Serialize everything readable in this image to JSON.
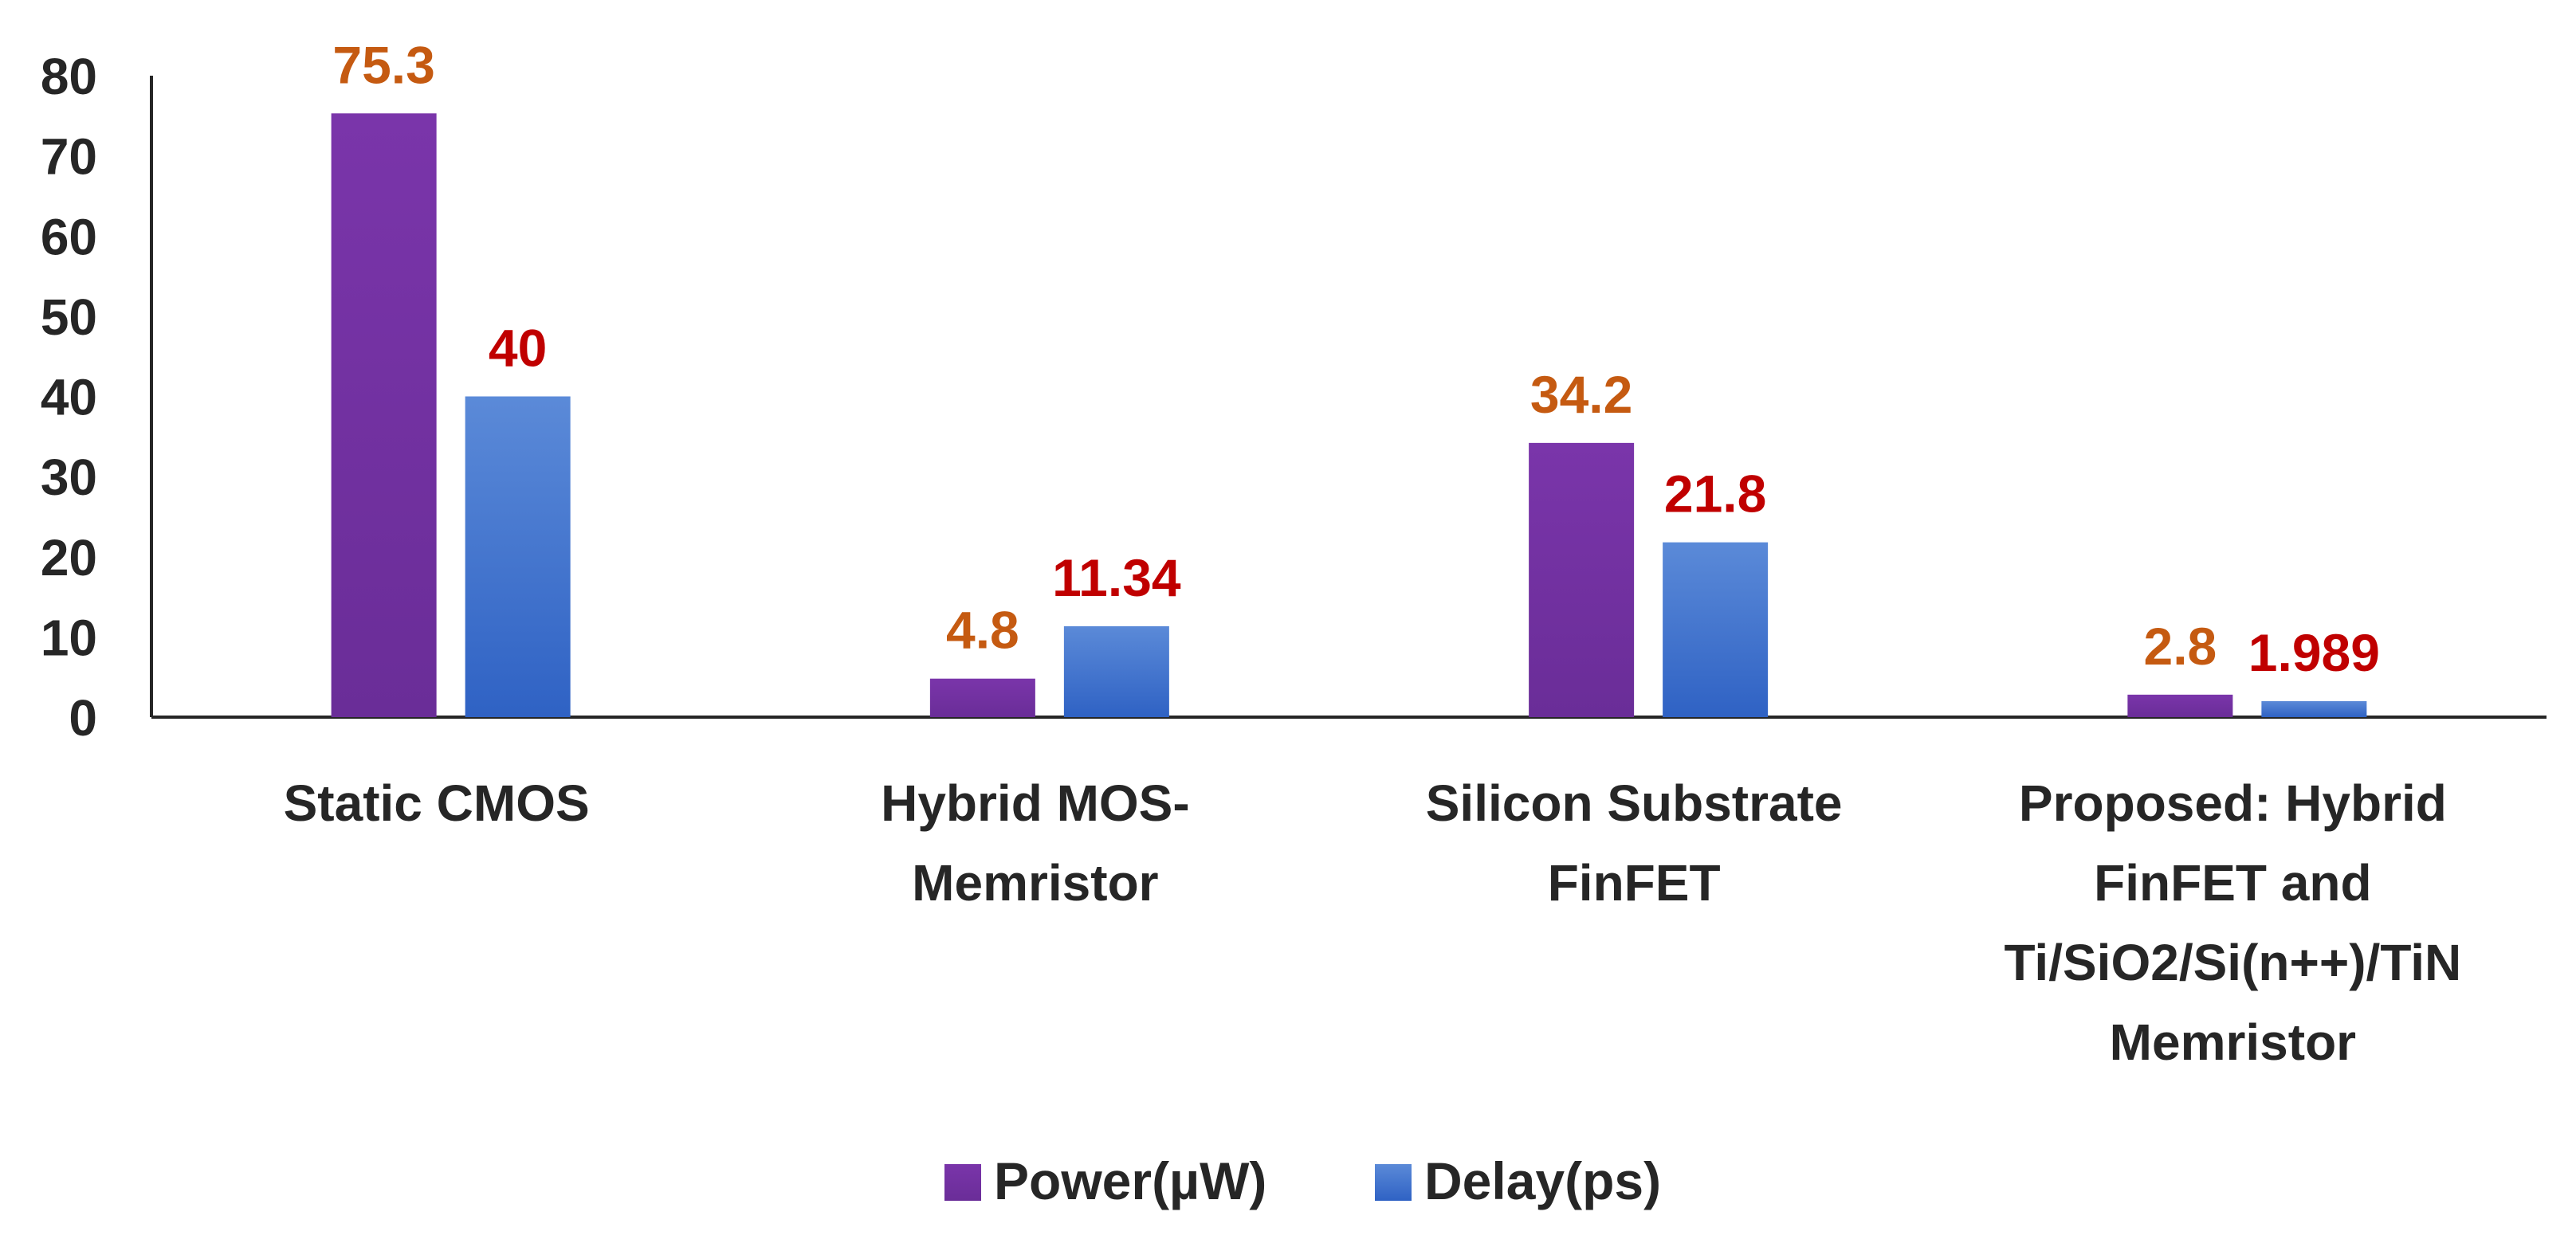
{
  "chart_data": {
    "type": "bar",
    "title": "",
    "xlabel": "",
    "ylabel": "",
    "ylim": [
      0,
      80
    ],
    "yticks": [
      "0",
      "10",
      "20",
      "30",
      "40",
      "50",
      "60",
      "70",
      "80"
    ],
    "grid": false,
    "legend_position": "bottom",
    "categories": [
      [
        "Static CMOS"
      ],
      [
        "Hybrid MOS-",
        "Memristor"
      ],
      [
        "Silicon Substrate",
        "FinFET"
      ],
      [
        "Proposed: Hybrid",
        "FinFET and",
        "Ti/SiO2/Si(n++)/TiN",
        "Memristor"
      ]
    ],
    "series": [
      {
        "name": "Power(µW)",
        "values": [
          75.3,
          4.8,
          34.2,
          2.8
        ],
        "labels": [
          "75.3",
          "4.8",
          "34.2",
          "2.8"
        ],
        "color": "#7030A0",
        "label_color": "#C55A11"
      },
      {
        "name": "Delay(ps)",
        "values": [
          40,
          11.34,
          21.8,
          1.989
        ],
        "labels": [
          "40",
          "11.34",
          "21.8",
          "1.989"
        ],
        "color": "#4472C4",
        "label_color": "#C00000"
      }
    ]
  }
}
